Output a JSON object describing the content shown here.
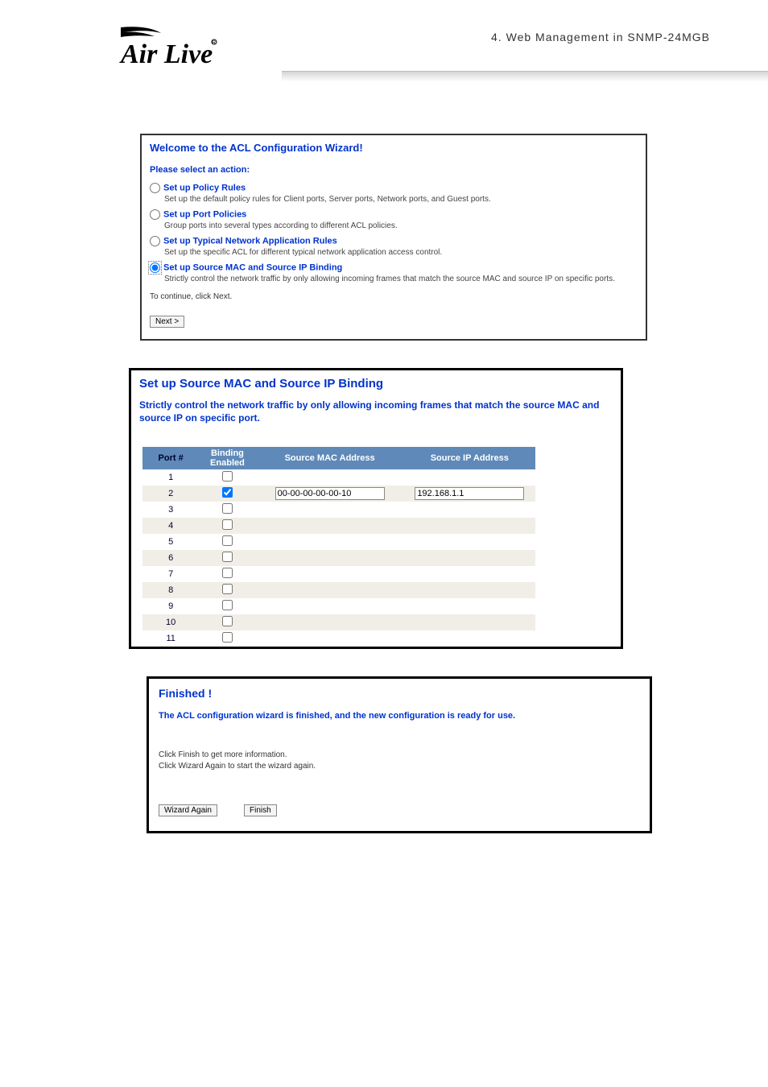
{
  "header": {
    "breadcrumb": "4.  Web Management in SNMP-24MGB",
    "brand_main": "AirLive"
  },
  "wizard": {
    "title": "Welcome to the ACL Configuration Wizard!",
    "prompt": "Please select an action:",
    "options": [
      {
        "label": "Set up Policy Rules",
        "desc": "Set up the default policy rules for Client ports, Server ports, Network ports, and Guest ports.",
        "checked": false
      },
      {
        "label": "Set up Port Policies",
        "desc": "Group ports into several types according to different ACL policies.",
        "checked": false
      },
      {
        "label": "Set up Typical Network Application Rules",
        "desc": "Set up the specific ACL for different typical network application access control.",
        "checked": false
      },
      {
        "label": "Set up Source MAC and Source IP Binding",
        "desc": "Strictly control the network traffic by only allowing incoming frames that match the source MAC and source IP on specific ports.",
        "checked": true
      }
    ],
    "continue": "To continue, click Next.",
    "next_label": "Next >"
  },
  "binding": {
    "title": "Set up Source MAC and Source IP Binding",
    "desc": "Strictly control the network traffic by only allowing incoming frames that match the source MAC and source IP on specific port.",
    "columns": {
      "port": "Port #",
      "enabled": "Binding Enabled",
      "mac": "Source MAC Address",
      "ip": "Source IP Address"
    },
    "rows": [
      {
        "port": "1",
        "enabled": false,
        "mac": "",
        "ip": ""
      },
      {
        "port": "2",
        "enabled": true,
        "mac": "00-00-00-00-00-10",
        "ip": "192.168.1.1"
      },
      {
        "port": "3",
        "enabled": false,
        "mac": "",
        "ip": ""
      },
      {
        "port": "4",
        "enabled": false,
        "mac": "",
        "ip": ""
      },
      {
        "port": "5",
        "enabled": false,
        "mac": "",
        "ip": ""
      },
      {
        "port": "6",
        "enabled": false,
        "mac": "",
        "ip": ""
      },
      {
        "port": "7",
        "enabled": false,
        "mac": "",
        "ip": ""
      },
      {
        "port": "8",
        "enabled": false,
        "mac": "",
        "ip": ""
      },
      {
        "port": "9",
        "enabled": false,
        "mac": "",
        "ip": ""
      },
      {
        "port": "10",
        "enabled": false,
        "mac": "",
        "ip": ""
      },
      {
        "port": "11",
        "enabled": false,
        "mac": "",
        "ip": ""
      }
    ]
  },
  "finished": {
    "title": "Finished !",
    "msg": "The ACL configuration wizard is finished, and the new configuration is ready for use.",
    "help1": "Click Finish to get more information.",
    "help2": "Click Wizard Again to start the wizard again.",
    "btn_again": "Wizard Again",
    "btn_finish": "Finish"
  },
  "style": {
    "link_color": "#0033cc",
    "table_header_bg": "#5f89b8",
    "row_alt_bg": "#f0eee6"
  }
}
